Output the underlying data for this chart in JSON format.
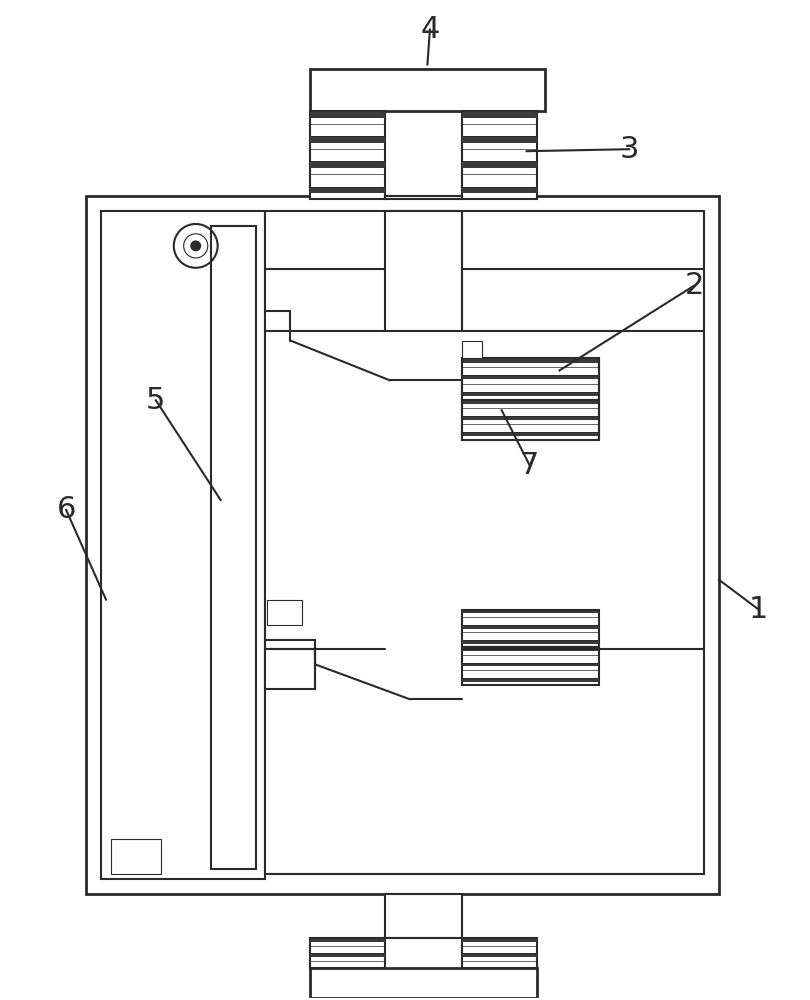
{
  "bg_color": "#ffffff",
  "line_color": "#2a2a2a",
  "lw_thick": 2.0,
  "lw_med": 1.5,
  "lw_thin": 0.8
}
